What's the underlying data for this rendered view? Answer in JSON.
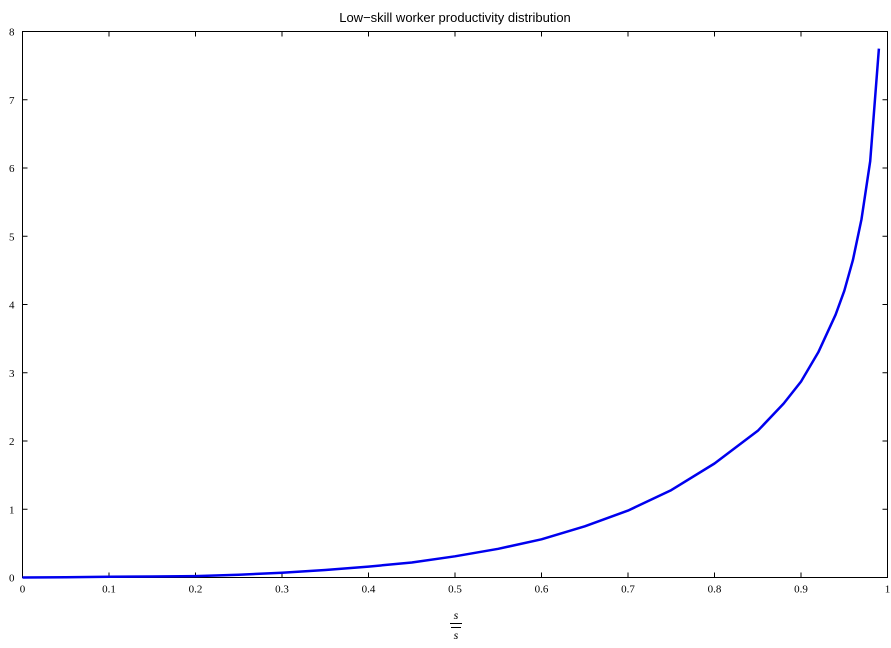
{
  "chart_data": {
    "type": "line",
    "title": "Low−skill worker productivity distribution",
    "xlabel": {
      "numerator": "s",
      "denominator": "s"
    },
    "ylabel": "",
    "xlim": [
      0,
      1
    ],
    "ylim": [
      0,
      8
    ],
    "x_ticks": [
      "0",
      "0.1",
      "0.2",
      "0.3",
      "0.4",
      "0.5",
      "0.6",
      "0.7",
      "0.8",
      "0.9",
      "1"
    ],
    "y_ticks": [
      "0",
      "1",
      "2",
      "3",
      "4",
      "5",
      "6",
      "7",
      "8"
    ],
    "grid": false,
    "series": [
      {
        "color": "#0000ee",
        "x": [
          0.0,
          0.05,
          0.1,
          0.15,
          0.2,
          0.25,
          0.3,
          0.35,
          0.4,
          0.45,
          0.5,
          0.55,
          0.6,
          0.65,
          0.7,
          0.75,
          0.8,
          0.85,
          0.88,
          0.9,
          0.92,
          0.94,
          0.95,
          0.96,
          0.97,
          0.98,
          0.99
        ],
        "y": [
          0.0,
          0.005,
          0.01,
          0.015,
          0.02,
          0.04,
          0.07,
          0.11,
          0.16,
          0.22,
          0.31,
          0.42,
          0.56,
          0.75,
          0.98,
          1.28,
          1.67,
          2.15,
          2.55,
          2.87,
          3.3,
          3.85,
          4.2,
          4.65,
          5.25,
          6.1,
          7.75
        ]
      }
    ]
  }
}
